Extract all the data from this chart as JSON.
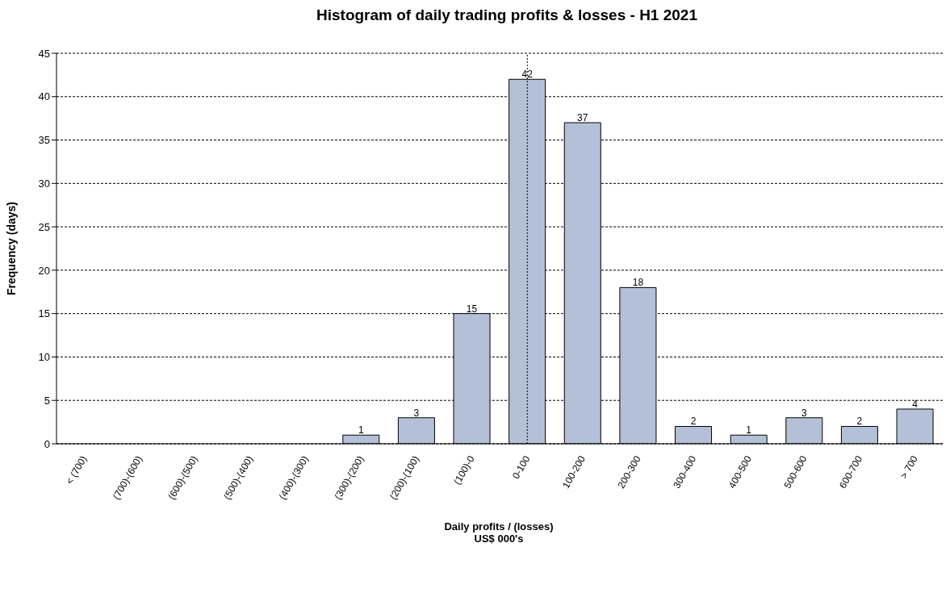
{
  "chart_data": {
    "type": "bar",
    "title": "Histogram of daily trading profits & losses - H1 2021",
    "xlabel": "Daily profits / (losses)\nUS$ 000's",
    "ylabel": "Frequency (days)",
    "categories": [
      "< (700)",
      "(700)-(600)",
      "(600)-(500)",
      "(500)-(400)",
      "(400)-(300)",
      "(300)-(200)",
      "(200)-(100)",
      "(100)-0",
      "0-100",
      "100-200",
      "200-300",
      "300-400",
      "400-500",
      "500-600",
      "600-700",
      "> 700"
    ],
    "values": [
      0,
      0,
      0,
      0,
      0,
      1,
      3,
      15,
      42,
      37,
      18,
      2,
      1,
      3,
      2,
      4
    ],
    "value_labels": [
      null,
      null,
      null,
      null,
      null,
      "1",
      "3",
      "15",
      "42",
      "37",
      "18",
      "2",
      "1",
      "3",
      "2",
      "4"
    ],
    "color": "#b4c0d8",
    "ylim": [
      0,
      45
    ],
    "yticks": [
      0,
      5,
      10,
      15,
      20,
      25,
      30,
      35,
      40,
      45
    ],
    "grid": "y",
    "ref_lines": [
      {
        "axis": "x",
        "value": "0-100",
        "line_style": "dotted",
        "color": "#000000"
      }
    ]
  }
}
